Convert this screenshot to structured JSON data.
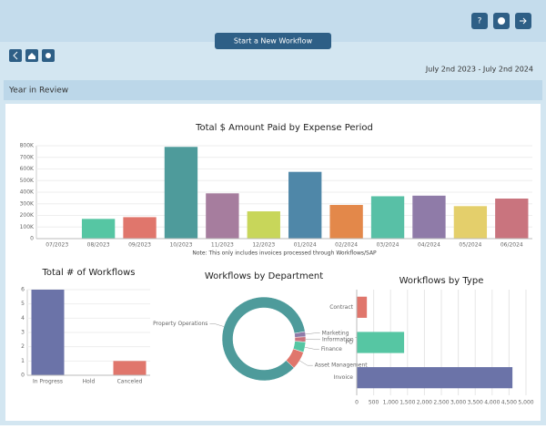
{
  "header": {
    "button": "Start a New Workflow",
    "date_range": "July 2nd 2023 - July 2nd 2024",
    "section": "Year in Review"
  },
  "chart_data": [
    {
      "type": "bar",
      "title": "Total $ Amount Paid by Expense Period",
      "categories": [
        "07/2023",
        "08/2023",
        "09/2023",
        "10/2023",
        "11/2023",
        "12/2023",
        "01/2024",
        "02/2024",
        "03/2024",
        "04/2024",
        "05/2024",
        "06/2024"
      ],
      "values": [
        2000,
        170000,
        185000,
        790000,
        390000,
        235000,
        575000,
        290000,
        365000,
        370000,
        280000,
        345000
      ],
      "colors": [
        "#3f5f7a",
        "#56c6a3",
        "#e0766c",
        "#4e9b9b",
        "#a67d9e",
        "#c8d65a",
        "#4f87a8",
        "#e3884a",
        "#58c0a6",
        "#8f7ba8",
        "#e4cf6b",
        "#c9747e"
      ],
      "ylim": [
        0,
        800000
      ],
      "yticks": [
        0,
        {
          "value": 100000,
          "label": "100K"
        },
        {
          "value": 200000,
          "label": "200K"
        },
        {
          "value": 300000,
          "label": "300K"
        },
        {
          "value": 400000,
          "label": "400K"
        },
        {
          "value": 500000,
          "label": "500K"
        },
        {
          "value": 600000,
          "label": "600K"
        },
        {
          "value": 700000,
          "label": "700K"
        },
        {
          "value": 800000,
          "label": "800K"
        }
      ],
      "note": "Note: This only includes invoices processed through Workflows/SAP",
      "grid": true
    },
    {
      "type": "bar",
      "title": "Total # of Workflows",
      "categories": [
        "In Progress",
        "Hold",
        "Canceled"
      ],
      "values": [
        6,
        0,
        1
      ],
      "colors": [
        "#6b73a8",
        "#6b73a8",
        "#e0766c"
      ],
      "ylim": [
        0,
        6
      ],
      "yticks": [
        0,
        1,
        2,
        3,
        4,
        5,
        6
      ],
      "grid": true
    },
    {
      "type": "pie",
      "title": "Workflows by Department",
      "categories": [
        "Property Operations",
        "Marketing",
        "Information Technology",
        "Finance",
        "Asset Management"
      ],
      "values": [
        85,
        2,
        2,
        4,
        7
      ],
      "colors": [
        "#4e9b9b",
        "#8f7ba8",
        "#c9747e",
        "#56c6a3",
        "#e0766c"
      ]
    },
    {
      "type": "hbar",
      "title": "Workflows by Type",
      "categories": [
        "Contract",
        "PO",
        "Invoice"
      ],
      "values": [
        300,
        1400,
        4600
      ],
      "colors": [
        "#e0766c",
        "#56c6a3",
        "#6b73a8"
      ],
      "xlim": [
        0,
        5000
      ],
      "xticks": [
        0,
        500,
        {
          "value": 1000,
          "label": "1,000"
        },
        {
          "value": 1500,
          "label": "1,500"
        },
        {
          "value": 2000,
          "label": "2,000"
        },
        {
          "value": 2500,
          "label": "2,500"
        },
        {
          "value": 3000,
          "label": "3,000"
        },
        {
          "value": 3500,
          "label": "3,500"
        },
        {
          "value": 4000,
          "label": "4,000"
        },
        {
          "value": 4500,
          "label": "4,500"
        },
        {
          "value": 5000,
          "label": "5,000"
        }
      ],
      "grid": true
    }
  ]
}
